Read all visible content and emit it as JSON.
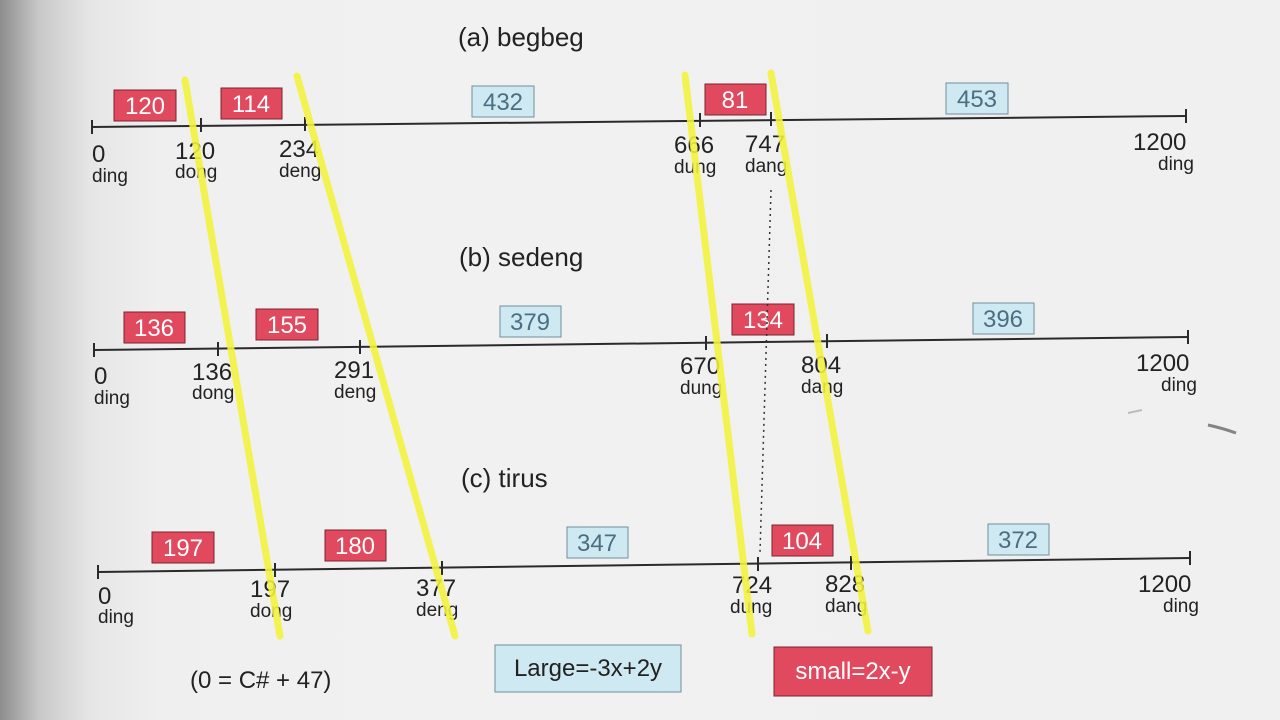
{
  "panels": [
    {
      "title": "(a)  begbeg",
      "ticks": [
        {
          "value": "0",
          "name": "ding"
        },
        {
          "value": "120",
          "name": "dong"
        },
        {
          "value": "234",
          "name": "deng"
        },
        {
          "value": "666",
          "name": "dung"
        },
        {
          "value": "747",
          "name": "dang"
        },
        {
          "value": "1200",
          "name": "ding"
        }
      ],
      "intervals": [
        {
          "label": "120",
          "kind": "small"
        },
        {
          "label": "114",
          "kind": "small"
        },
        {
          "label": "432",
          "kind": "large"
        },
        {
          "label": "81",
          "kind": "small"
        },
        {
          "label": "453",
          "kind": "large"
        }
      ]
    },
    {
      "title": "(b)  sedeng",
      "ticks": [
        {
          "value": "0",
          "name": "ding"
        },
        {
          "value": "136",
          "name": "dong"
        },
        {
          "value": "291",
          "name": "deng"
        },
        {
          "value": "670",
          "name": "dung"
        },
        {
          "value": "804",
          "name": "dang"
        },
        {
          "value": "1200",
          "name": "ding"
        }
      ],
      "intervals": [
        {
          "label": "136",
          "kind": "small"
        },
        {
          "label": "155",
          "kind": "small"
        },
        {
          "label": "379",
          "kind": "large"
        },
        {
          "label": "134",
          "kind": "small"
        },
        {
          "label": "396",
          "kind": "large"
        }
      ]
    },
    {
      "title": "(c)  tirus",
      "ticks": [
        {
          "value": "0",
          "name": "ding"
        },
        {
          "value": "197",
          "name": "dong"
        },
        {
          "value": "377",
          "name": "deng"
        },
        {
          "value": "724",
          "name": "dung"
        },
        {
          "value": "828",
          "name": "dang"
        },
        {
          "value": "1200",
          "name": "ding"
        }
      ],
      "intervals": [
        {
          "label": "197",
          "kind": "small"
        },
        {
          "label": "180",
          "kind": "small"
        },
        {
          "label": "347",
          "kind": "large"
        },
        {
          "label": "104",
          "kind": "small"
        },
        {
          "label": "372",
          "kind": "large"
        }
      ]
    }
  ],
  "note": "(0 = C# + 47)",
  "formulas": {
    "large": "Large=-3x+2y",
    "small": "small=2x-y"
  },
  "colors": {
    "small_fill": "#e14a5e",
    "small_text": "#ffffff",
    "large_fill": "#cfe9f2",
    "large_text": "#4a6f82",
    "highlight": "#f3f33a",
    "axis": "#2a2a2a"
  }
}
